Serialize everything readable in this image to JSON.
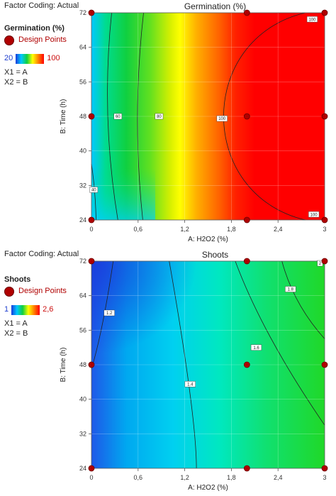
{
  "charts": [
    {
      "factor_coding": "Factor Coding: Actual",
      "response_title": "Germination (%)",
      "design_points_label": "Design Points",
      "range_min": "20",
      "range_max": "100",
      "x1": "X1 = A",
      "x2": "X2 = B"
    },
    {
      "factor_coding": "Factor Coding: Actual",
      "response_title": "Shoots",
      "design_points_label": "Design Points",
      "range_min": "1",
      "range_max": "2,6",
      "x1": "X1 = A",
      "x2": "X2 = B"
    }
  ],
  "chart_data": [
    {
      "type": "contour",
      "title": "Germination (%)",
      "xlabel": "A: H2O2 (%)",
      "ylabel": "B: Time (h)",
      "xlim": [
        0,
        3
      ],
      "ylim": [
        24,
        72
      ],
      "x_ticks": [
        "0",
        "0,6",
        "1,2",
        "1,8",
        "2,4",
        "3"
      ],
      "y_ticks": [
        "24",
        "32",
        "40",
        "48",
        "56",
        "64",
        "72"
      ],
      "color_range": [
        20,
        100
      ],
      "contour_labels": [
        {
          "text": "40",
          "x": 0.03,
          "y": 31
        },
        {
          "text": "60",
          "x": 0.34,
          "y": 48
        },
        {
          "text": "80",
          "x": 0.87,
          "y": 48
        },
        {
          "text": "100",
          "x": 1.68,
          "y": 47.5
        },
        {
          "text": "100",
          "x": 2.84,
          "y": 70.5
        },
        {
          "text": "100",
          "x": 2.86,
          "y": 25.3
        }
      ],
      "design_points": [
        [
          0,
          24
        ],
        [
          0,
          48
        ],
        [
          0,
          72
        ],
        [
          2,
          24
        ],
        [
          2,
          48
        ],
        [
          2,
          72
        ],
        [
          3,
          24
        ],
        [
          3,
          48
        ],
        [
          3,
          72
        ]
      ]
    },
    {
      "type": "contour",
      "title": "Shoots",
      "xlabel": "A: H2O2 (%)",
      "ylabel": "B: Time (h)",
      "xlim": [
        0,
        3
      ],
      "ylim": [
        24,
        72
      ],
      "x_ticks": [
        "0",
        "0,6",
        "1,2",
        "1,8",
        "2,4",
        "3"
      ],
      "y_ticks": [
        "24",
        "32",
        "40",
        "48",
        "56",
        "64",
        "72"
      ],
      "color_range": [
        1,
        2.6
      ],
      "contour_labels": [
        {
          "text": "1.2",
          "x": 0.23,
          "y": 60
        },
        {
          "text": "1.4",
          "x": 1.27,
          "y": 43.5
        },
        {
          "text": "1.6",
          "x": 2.12,
          "y": 52
        },
        {
          "text": "1.8",
          "x": 2.56,
          "y": 65.5
        },
        {
          "text": "2",
          "x": 2.94,
          "y": 71.5
        }
      ],
      "design_points": [
        [
          0,
          24
        ],
        [
          0,
          48
        ],
        [
          0,
          72
        ],
        [
          2,
          24
        ],
        [
          2,
          48
        ],
        [
          2,
          72
        ],
        [
          3,
          24
        ],
        [
          3,
          48
        ],
        [
          3,
          72
        ]
      ]
    }
  ]
}
